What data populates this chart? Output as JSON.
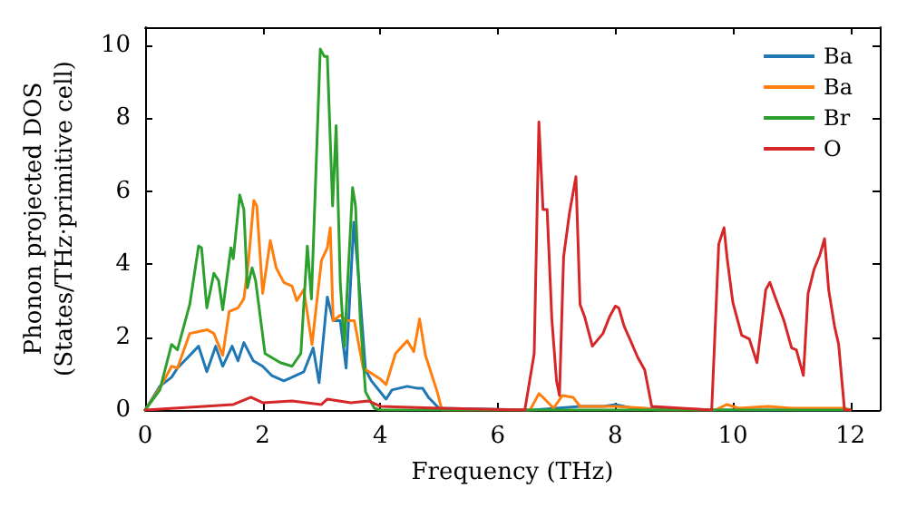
{
  "chart_data": {
    "type": "line",
    "xlabel": "Frequency (THz)",
    "ylabel": "Phonon projected DOS\n(States/THz·primitive cell)",
    "xlim": [
      0,
      12.5
    ],
    "ylim": [
      0,
      10.5
    ],
    "xticks": [
      0,
      2,
      4,
      6,
      8,
      10,
      12
    ],
    "yticks": [
      0,
      2,
      4,
      6,
      8,
      10
    ],
    "grid": false,
    "legend": "top right",
    "marker": "none",
    "line_style": "solid",
    "series": [
      {
        "name": "Ba",
        "color": "#1f77b4",
        "x": [
          0,
          0.25,
          0.45,
          0.55,
          0.76,
          0.91,
          1.05,
          1.2,
          1.32,
          1.48,
          1.58,
          1.68,
          1.84,
          2.0,
          2.15,
          2.36,
          2.5,
          2.7,
          2.86,
          2.96,
          3.1,
          3.2,
          3.32,
          3.42,
          3.55,
          3.63,
          3.75,
          3.85,
          4.1,
          4.2,
          4.46,
          4.62,
          4.72,
          4.82,
          5.0,
          6.6,
          7.0,
          7.4,
          7.8,
          8.0,
          8.3,
          9.6,
          12.0
        ],
        "values": [
          0,
          0.65,
          0.9,
          1.15,
          1.5,
          1.75,
          1.05,
          1.75,
          1.2,
          1.75,
          1.35,
          1.85,
          1.35,
          1.2,
          0.95,
          0.8,
          0.9,
          1.05,
          1.7,
          0.75,
          3.1,
          2.45,
          2.45,
          1.15,
          5.15,
          3.7,
          1.1,
          0.8,
          0.3,
          0.55,
          0.65,
          0.6,
          0.6,
          0.35,
          0.05,
          0,
          0.05,
          0.1,
          0.1,
          0.15,
          0.05,
          0,
          0
        ]
      },
      {
        "name": "Ba",
        "color": "#ff7f0e",
        "x": [
          0,
          0.25,
          0.45,
          0.55,
          0.76,
          0.91,
          1.06,
          1.17,
          1.32,
          1.43,
          1.58,
          1.68,
          1.76,
          1.85,
          1.9,
          2.0,
          2.13,
          2.23,
          2.36,
          2.5,
          2.58,
          2.7,
          2.84,
          3.0,
          3.1,
          3.15,
          3.2,
          3.32,
          3.44,
          3.56,
          3.71,
          4.0,
          4.1,
          4.26,
          4.46,
          4.57,
          4.67,
          4.77,
          4.97,
          5.05,
          6.55,
          6.7,
          6.8,
          6.95,
          7.1,
          7.28,
          7.4,
          8.0,
          8.5,
          8.7,
          9.7,
          9.9,
          10.1,
          10.6,
          11.0,
          11.9,
          12.0
        ],
        "values": [
          0,
          0.6,
          1.2,
          1.15,
          2.1,
          2.15,
          2.2,
          2.1,
          1.5,
          2.7,
          2.8,
          3.05,
          4.1,
          5.75,
          5.6,
          3.2,
          4.65,
          3.9,
          3.5,
          3.4,
          3.0,
          3.3,
          1.8,
          4.1,
          4.45,
          5.0,
          2.45,
          2.6,
          2.45,
          2.45,
          1.15,
          0.85,
          0.7,
          1.55,
          1.9,
          1.6,
          2.5,
          1.5,
          0.5,
          0,
          0,
          0.45,
          0.3,
          0.05,
          0.4,
          0.35,
          0.1,
          0.1,
          0.05,
          0,
          0,
          0.15,
          0.05,
          0.1,
          0.05,
          0.05,
          0
        ]
      },
      {
        "name": "Br",
        "color": "#2ca02c",
        "x": [
          0,
          0.25,
          0.45,
          0.55,
          0.76,
          0.91,
          0.96,
          1.05,
          1.17,
          1.25,
          1.32,
          1.46,
          1.5,
          1.61,
          1.68,
          1.74,
          1.82,
          1.88,
          2.04,
          2.3,
          2.5,
          2.65,
          2.76,
          2.83,
          2.98,
          3.05,
          3.1,
          3.19,
          3.25,
          3.32,
          3.39,
          3.53,
          3.58,
          3.66,
          3.75,
          3.9,
          4.0,
          12.0
        ],
        "values": [
          0,
          0.55,
          1.8,
          1.65,
          2.9,
          4.5,
          4.45,
          2.8,
          3.75,
          3.55,
          2.75,
          4.45,
          4.15,
          5.9,
          5.5,
          3.35,
          3.9,
          3.55,
          1.55,
          1.3,
          1.2,
          1.55,
          4.5,
          3.05,
          9.9,
          9.7,
          9.7,
          5.6,
          7.8,
          3.5,
          1.75,
          6.1,
          5.6,
          2.5,
          0.5,
          0.05,
          0,
          0
        ]
      },
      {
        "name": "O",
        "color": "#d62728",
        "x": [
          0,
          1.0,
          1.5,
          1.8,
          2.0,
          2.5,
          3.0,
          3.1,
          3.5,
          3.8,
          4.0,
          5.0,
          6.46,
          6.62,
          6.7,
          6.77,
          6.84,
          6.92,
          7.0,
          7.05,
          7.12,
          7.22,
          7.33,
          7.4,
          7.48,
          7.61,
          7.79,
          7.9,
          8.0,
          8.06,
          8.15,
          8.26,
          8.38,
          8.5,
          8.62,
          9.64,
          9.76,
          9.85,
          9.9,
          10.0,
          10.15,
          10.28,
          10.41,
          10.56,
          10.63,
          10.72,
          10.87,
          11.0,
          11.08,
          11.2,
          11.28,
          11.38,
          11.48,
          11.56,
          11.63,
          11.73,
          11.8,
          11.9,
          12.0
        ],
        "values": [
          0,
          0.1,
          0.15,
          0.35,
          0.2,
          0.25,
          0.15,
          0.3,
          0.2,
          0.25,
          0.1,
          0.05,
          0,
          1.55,
          7.9,
          5.5,
          5.5,
          2.5,
          0.8,
          0.4,
          4.2,
          5.4,
          6.4,
          2.9,
          2.55,
          1.75,
          2.1,
          2.55,
          2.85,
          2.8,
          2.3,
          1.9,
          1.45,
          1.1,
          0.1,
          0,
          4.55,
          5.0,
          4.2,
          2.95,
          2.05,
          1.95,
          1.3,
          3.3,
          3.5,
          3.1,
          2.45,
          1.7,
          1.65,
          0.95,
          3.2,
          3.85,
          4.25,
          4.7,
          3.3,
          2.3,
          1.8,
          0,
          0
        ]
      }
    ]
  }
}
